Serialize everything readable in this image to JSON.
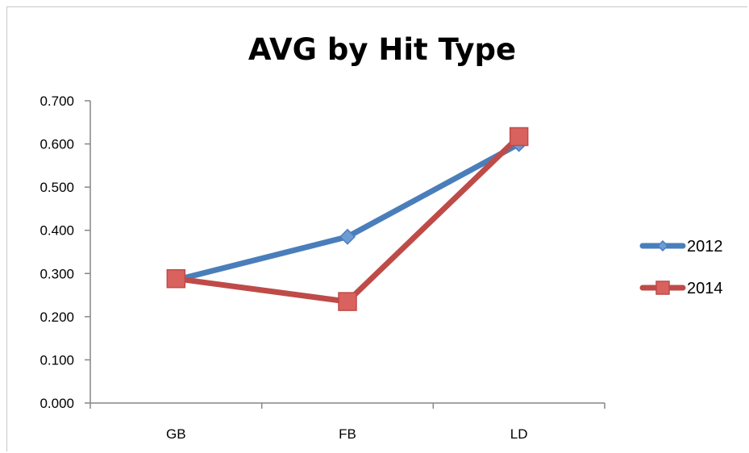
{
  "chart_data": {
    "type": "line",
    "title": "AVG by Hit Type",
    "xlabel": "",
    "ylabel": "",
    "categories": [
      "GB",
      "FB",
      "LD"
    ],
    "ylim": [
      0,
      0.7
    ],
    "yticks": [
      "0.000",
      "0.100",
      "0.200",
      "0.300",
      "0.400",
      "0.500",
      "0.600",
      "0.700"
    ],
    "ytick_values": [
      0,
      0.1,
      0.2,
      0.3,
      0.4,
      0.5,
      0.6,
      0.7
    ],
    "grid": false,
    "legend_position": "right",
    "series": [
      {
        "name": "2012",
        "values": [
          0.285,
          0.385,
          0.6
        ],
        "color": "#4a7ebb",
        "marker": "diamond"
      },
      {
        "name": "2014",
        "values": [
          0.288,
          0.235,
          0.617
        ],
        "color": "#be4b48",
        "marker": "square"
      }
    ]
  }
}
